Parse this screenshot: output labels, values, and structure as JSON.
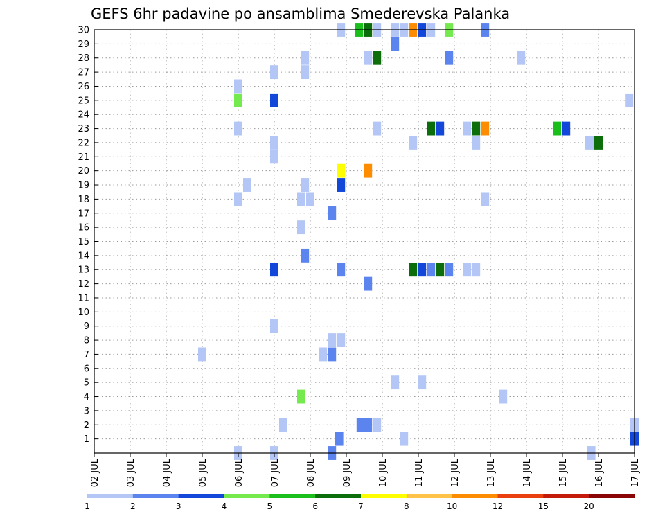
{
  "chart_data": {
    "type": "heatmap",
    "title": "GEFS 6hr padavine po ansamblima Smederevska Palanka",
    "xlabel": "",
    "ylabel": "",
    "x_ticks": [
      "02 JUL",
      "03 JUL",
      "04 JUL",
      "05 JUL",
      "06 JUL",
      "07 JUL",
      "08 JUL",
      "09 JUL",
      "10 JUL",
      "11 JUL",
      "12 JUL",
      "13 JUL",
      "14 JUL",
      "15 JUL",
      "16 JUL",
      "17 JUL"
    ],
    "y_ticks": [
      1,
      2,
      3,
      4,
      5,
      6,
      7,
      8,
      9,
      10,
      11,
      12,
      13,
      14,
      15,
      16,
      17,
      18,
      19,
      20,
      21,
      22,
      23,
      24,
      25,
      26,
      27,
      28,
      29,
      30
    ],
    "x_range_days": [
      2,
      17
    ],
    "member_range": [
      0,
      30
    ],
    "grid": true,
    "legend_position": "bottom",
    "legend": {
      "labels": [
        "1",
        "2",
        "3",
        "4",
        "5",
        "6",
        "7",
        "8",
        "10",
        "12",
        "15",
        "20"
      ],
      "colors": [
        "#b3c6f6",
        "#5c84ee",
        "#1247d9",
        "#74ea4f",
        "#1bbf1b",
        "#0b6e0b",
        "#fefe00",
        "#ffc34a",
        "#fe8c00",
        "#ea4010",
        "#c41a0c",
        "#8a0505"
      ],
      "bounds": [
        1,
        2,
        3,
        4,
        5,
        6,
        7,
        8,
        10,
        12,
        15,
        20
      ]
    },
    "points": [
      {
        "day": 6.0,
        "member": 0,
        "class": 1
      },
      {
        "day": 7.0,
        "member": 0,
        "class": 1
      },
      {
        "day": 8.6,
        "member": 0,
        "class": 2
      },
      {
        "day": 15.8,
        "member": 0,
        "class": 1
      },
      {
        "day": 8.8,
        "member": 1,
        "class": 2
      },
      {
        "day": 10.6,
        "member": 1,
        "class": 1
      },
      {
        "day": 17.0,
        "member": 1,
        "class": 3
      },
      {
        "day": 7.25,
        "member": 2,
        "class": 1
      },
      {
        "day": 9.4,
        "member": 2,
        "class": 2
      },
      {
        "day": 9.6,
        "member": 2,
        "class": 2
      },
      {
        "day": 9.85,
        "member": 2,
        "class": 1
      },
      {
        "day": 17.0,
        "member": 2,
        "class": 1
      },
      {
        "day": 7.75,
        "member": 4,
        "class": 4
      },
      {
        "day": 13.35,
        "member": 4,
        "class": 1
      },
      {
        "day": 10.35,
        "member": 5,
        "class": 1
      },
      {
        "day": 11.1,
        "member": 5,
        "class": 1
      },
      {
        "day": 5.0,
        "member": 7,
        "class": 1
      },
      {
        "day": 8.35,
        "member": 7,
        "class": 1
      },
      {
        "day": 8.6,
        "member": 7,
        "class": 2
      },
      {
        "day": 8.6,
        "member": 8,
        "class": 1
      },
      {
        "day": 8.85,
        "member": 8,
        "class": 1
      },
      {
        "day": 7.0,
        "member": 9,
        "class": 1
      },
      {
        "day": 9.6,
        "member": 12,
        "class": 2
      },
      {
        "day": 7.0,
        "member": 13,
        "class": 3
      },
      {
        "day": 8.85,
        "member": 13,
        "class": 2
      },
      {
        "day": 10.85,
        "member": 13,
        "class": 6
      },
      {
        "day": 11.1,
        "member": 13,
        "class": 3
      },
      {
        "day": 11.35,
        "member": 13,
        "class": 2
      },
      {
        "day": 11.6,
        "member": 13,
        "class": 6
      },
      {
        "day": 11.85,
        "member": 13,
        "class": 2
      },
      {
        "day": 12.35,
        "member": 13,
        "class": 1
      },
      {
        "day": 12.6,
        "member": 13,
        "class": 1
      },
      {
        "day": 7.85,
        "member": 14,
        "class": 2
      },
      {
        "day": 7.75,
        "member": 16,
        "class": 1
      },
      {
        "day": 8.6,
        "member": 17,
        "class": 2
      },
      {
        "day": 6.0,
        "member": 18,
        "class": 1
      },
      {
        "day": 7.75,
        "member": 18,
        "class": 1
      },
      {
        "day": 8.0,
        "member": 18,
        "class": 1
      },
      {
        "day": 12.85,
        "member": 18,
        "class": 1
      },
      {
        "day": 6.25,
        "member": 19,
        "class": 1
      },
      {
        "day": 7.85,
        "member": 19,
        "class": 1
      },
      {
        "day": 8.85,
        "member": 19,
        "class": 3
      },
      {
        "day": 8.85,
        "member": 20,
        "class": 7
      },
      {
        "day": 9.6,
        "member": 20,
        "class": 9
      },
      {
        "day": 7.0,
        "member": 21,
        "class": 1
      },
      {
        "day": 7.0,
        "member": 22,
        "class": 1
      },
      {
        "day": 10.85,
        "member": 22,
        "class": 1
      },
      {
        "day": 12.6,
        "member": 22,
        "class": 1
      },
      {
        "day": 15.75,
        "member": 22,
        "class": 1
      },
      {
        "day": 16.0,
        "member": 22,
        "class": 6
      },
      {
        "day": 6.0,
        "member": 23,
        "class": 1
      },
      {
        "day": 9.85,
        "member": 23,
        "class": 1
      },
      {
        "day": 11.35,
        "member": 23,
        "class": 6
      },
      {
        "day": 11.6,
        "member": 23,
        "class": 3
      },
      {
        "day": 12.35,
        "member": 23,
        "class": 1
      },
      {
        "day": 12.6,
        "member": 23,
        "class": 6
      },
      {
        "day": 12.85,
        "member": 23,
        "class": 9
      },
      {
        "day": 14.85,
        "member": 23,
        "class": 5
      },
      {
        "day": 15.1,
        "member": 23,
        "class": 3
      },
      {
        "day": 6.0,
        "member": 25,
        "class": 4
      },
      {
        "day": 7.0,
        "member": 25,
        "class": 3
      },
      {
        "day": 16.85,
        "member": 25,
        "class": 1
      },
      {
        "day": 6.0,
        "member": 26,
        "class": 1
      },
      {
        "day": 7.0,
        "member": 27,
        "class": 1
      },
      {
        "day": 7.85,
        "member": 27,
        "class": 1
      },
      {
        "day": 7.85,
        "member": 28,
        "class": 1
      },
      {
        "day": 9.6,
        "member": 28,
        "class": 1
      },
      {
        "day": 9.85,
        "member": 28,
        "class": 6
      },
      {
        "day": 11.85,
        "member": 28,
        "class": 2
      },
      {
        "day": 13.85,
        "member": 28,
        "class": 1
      },
      {
        "day": 10.35,
        "member": 29,
        "class": 2
      },
      {
        "day": 8.85,
        "member": 30,
        "class": 1
      },
      {
        "day": 9.35,
        "member": 30,
        "class": 5
      },
      {
        "day": 9.6,
        "member": 30,
        "class": 6
      },
      {
        "day": 9.85,
        "member": 30,
        "class": 1
      },
      {
        "day": 10.35,
        "member": 30,
        "class": 1
      },
      {
        "day": 10.6,
        "member": 30,
        "class": 1
      },
      {
        "day": 10.85,
        "member": 30,
        "class": 9
      },
      {
        "day": 11.1,
        "member": 30,
        "class": 3
      },
      {
        "day": 11.35,
        "member": 30,
        "class": 1
      },
      {
        "day": 11.85,
        "member": 30,
        "class": 4
      },
      {
        "day": 12.85,
        "member": 30,
        "class": 2
      }
    ]
  }
}
